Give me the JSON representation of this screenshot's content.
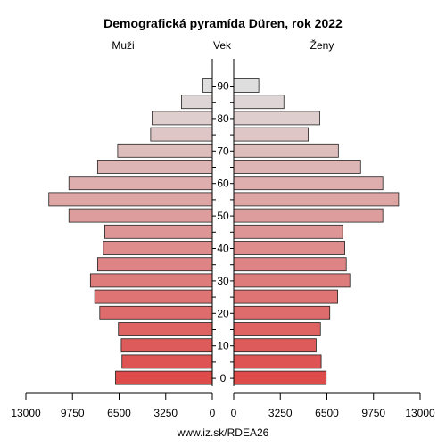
{
  "chart_data": {
    "type": "bar",
    "title": "Demografická pyramída Düren, rok 2022",
    "left_label": "Muži",
    "center_label": "Vek",
    "right_label": "Ženy",
    "source": "www.iz.sk/RDEA26",
    "age_groups": [
      "0",
      "5",
      "10",
      "15",
      "20",
      "25",
      "30",
      "35",
      "40",
      "45",
      "50",
      "55",
      "60",
      "65",
      "70",
      "75",
      "80",
      "85",
      "90"
    ],
    "age_tick_labels": [
      "0",
      "10",
      "20",
      "30",
      "40",
      "50",
      "60",
      "70",
      "80",
      "90"
    ],
    "series": [
      {
        "name": "Muži",
        "values": [
          6750,
          6300,
          6350,
          6550,
          7850,
          8200,
          8500,
          8000,
          7600,
          7500,
          10000,
          11400,
          10000,
          8000,
          6600,
          4300,
          4200,
          2150,
          650
        ]
      },
      {
        "name": "Ženy",
        "values": [
          6450,
          6100,
          5750,
          6050,
          6700,
          7250,
          8100,
          7850,
          7750,
          7600,
          10400,
          11500,
          10400,
          8850,
          7300,
          5200,
          6000,
          3500,
          1750
        ]
      }
    ],
    "xlim": [
      0,
      13000
    ],
    "x_tick_values": [
      13000,
      9750,
      6500,
      3250,
      0
    ],
    "x_tick_labels": [
      "13000",
      "9750",
      "6500",
      "3250",
      "0"
    ],
    "colors": {
      "young": "#de4b4b",
      "old": "#dedede",
      "outline": "#222222"
    }
  }
}
